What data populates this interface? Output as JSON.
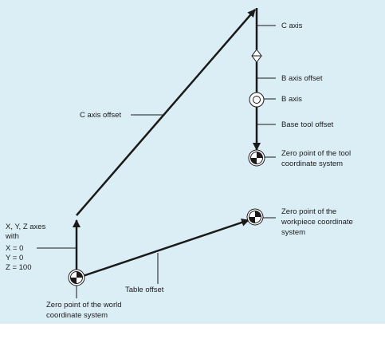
{
  "colors": {
    "background": "#dbeef6",
    "page": "#ffffff",
    "line": "#1a1a1a"
  },
  "symbols": {
    "zero_point": "quartered-circle-icon",
    "axis": "double-circle-icon",
    "offset": "diamond-icon"
  },
  "labels": {
    "c_axis": "C axis",
    "b_axis_offset": "B axis offset",
    "b_axis": "B axis",
    "base_tool_offset": "Base tool offset",
    "tool_zero_line1": "Zero point of the tool",
    "tool_zero_line2": "coordinate system",
    "c_axis_offset": "C axis offset",
    "workpiece_zero_line1": "Zero point of the",
    "workpiece_zero_line2": "workpiece coordinate",
    "workpiece_zero_line3": "system",
    "xyz_line1": "X, Y, Z axes",
    "xyz_line2": "with",
    "xyz_line3": "X = 0",
    "xyz_line4": "Y = 0",
    "xyz_line5": "Z = 100",
    "table_offset": "Table offset",
    "world_zero_line1": "Zero point of the world",
    "world_zero_line2": "coordinate system"
  }
}
